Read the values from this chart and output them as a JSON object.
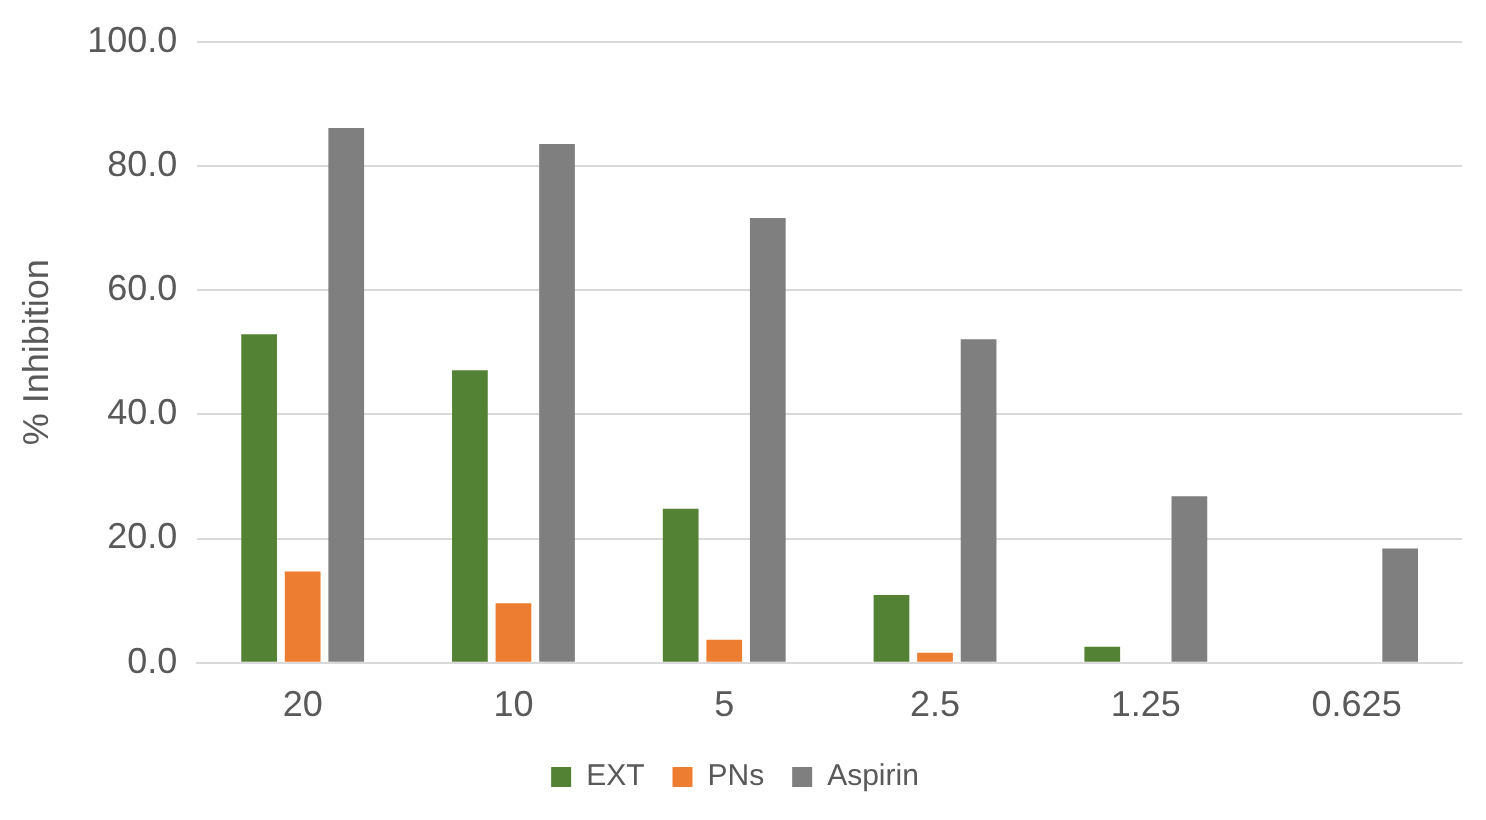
{
  "chart_data": {
    "type": "bar",
    "ylabel": "% Inhibition",
    "categories": [
      "20",
      "10",
      "5",
      "2.5",
      "1.25",
      "0.625"
    ],
    "series": [
      {
        "name": "EXT",
        "color": "#548235",
        "values": [
          52.9,
          47.1,
          24.8,
          10.9,
          2.6,
          0
        ]
      },
      {
        "name": "PNs",
        "color": "#ed7d31",
        "values": [
          14.7,
          9.6,
          3.7,
          1.6,
          0,
          0
        ]
      },
      {
        "name": "Aspirin",
        "color": "#7f7f7f",
        "values": [
          86.1,
          83.5,
          71.6,
          52.1,
          26.8,
          18.4
        ]
      }
    ],
    "ylim": [
      0,
      100
    ],
    "yticks": [
      {
        "value": 0,
        "label": "0.0"
      },
      {
        "value": 20,
        "label": "20.0"
      },
      {
        "value": 40,
        "label": "40.0"
      },
      {
        "value": 60,
        "label": "60.0"
      },
      {
        "value": 80,
        "label": "80.0"
      },
      {
        "value": 100,
        "label": "100.0"
      }
    ],
    "grid": "y",
    "legend": "bottom"
  }
}
